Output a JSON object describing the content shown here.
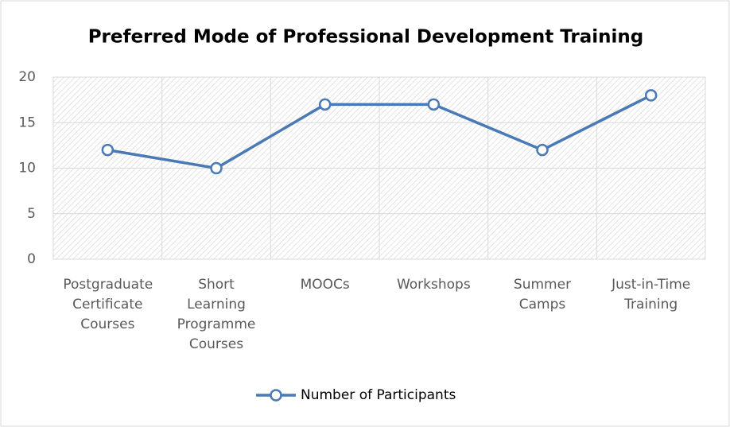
{
  "chart_data": {
    "type": "line",
    "title": "Preferred Mode of Professional Development Training",
    "categories": [
      "Postgraduate Certificate Courses",
      "Short Learning Programme Courses",
      "MOOCs",
      "Workshops",
      "Summer Camps",
      "Just-in-Time Training"
    ],
    "series": [
      {
        "name": "Number of Participants",
        "color": "#4a7ab5",
        "values": [
          12,
          10,
          17,
          17,
          12,
          18
        ]
      }
    ],
    "ylim": [
      0,
      20
    ],
    "yticks": [
      0,
      5,
      10,
      15,
      20
    ],
    "grid": true,
    "legend": "bottom"
  }
}
